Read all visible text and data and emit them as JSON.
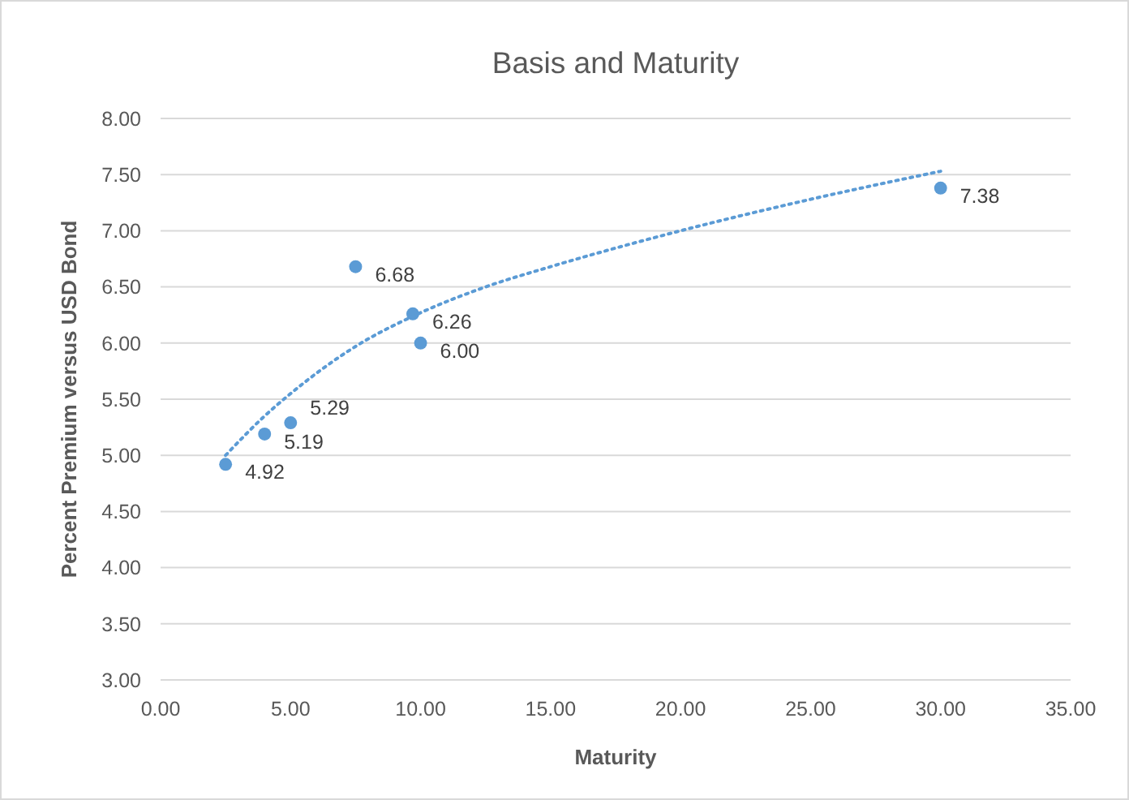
{
  "chart_data": {
    "type": "scatter",
    "title": "Basis and Maturity",
    "xlabel": "Maturity",
    "ylabel": "Percent Premium versus USD Bond",
    "xlim": [
      0,
      35
    ],
    "xticks": [
      {
        "value": 0,
        "label": "0.00"
      },
      {
        "value": 5,
        "label": "5.00"
      },
      {
        "value": 10,
        "label": "10.00"
      },
      {
        "value": 15,
        "label": "15.00"
      },
      {
        "value": 20,
        "label": "20.00"
      },
      {
        "value": 25,
        "label": "25.00"
      },
      {
        "value": 30,
        "label": "30.00"
      },
      {
        "value": 35,
        "label": "35.00"
      }
    ],
    "ylim": [
      3,
      8
    ],
    "yticks": [
      {
        "value": 3,
        "label": "3.00"
      },
      {
        "value": 3.5,
        "label": "3.50"
      },
      {
        "value": 4,
        "label": "4.00"
      },
      {
        "value": 4.5,
        "label": "4.50"
      },
      {
        "value": 5,
        "label": "5.00"
      },
      {
        "value": 5.5,
        "label": "5.50"
      },
      {
        "value": 6,
        "label": "6.00"
      },
      {
        "value": 6.5,
        "label": "6.50"
      },
      {
        "value": 7,
        "label": "7.00"
      },
      {
        "value": 7.5,
        "label": "7.50"
      },
      {
        "value": 8,
        "label": "8.00"
      }
    ],
    "grid": "y",
    "marker": "circle",
    "series": [
      {
        "color": "#5b9bd5",
        "x": [
          2.5,
          4,
          5,
          7.5,
          9.7,
          10,
          30
        ],
        "values": [
          4.92,
          5.19,
          5.29,
          6.68,
          6.26,
          6.0,
          7.38
        ],
        "value_labels": [
          "4.92",
          "5.19",
          "5.29",
          "6.68",
          "6.26",
          "6.00",
          "7.38"
        ]
      },
      {
        "type": "line",
        "color": "#5b9bd5",
        "line_style": "dotted",
        "marker": "none",
        "x": [
          2.5,
          4,
          5,
          7.5,
          10,
          12.5,
          15,
          20,
          25,
          30
        ],
        "values": [
          5.0,
          5.35,
          5.55,
          5.97,
          6.27,
          6.5,
          6.68,
          7.0,
          7.28,
          7.53
        ]
      }
    ]
  }
}
